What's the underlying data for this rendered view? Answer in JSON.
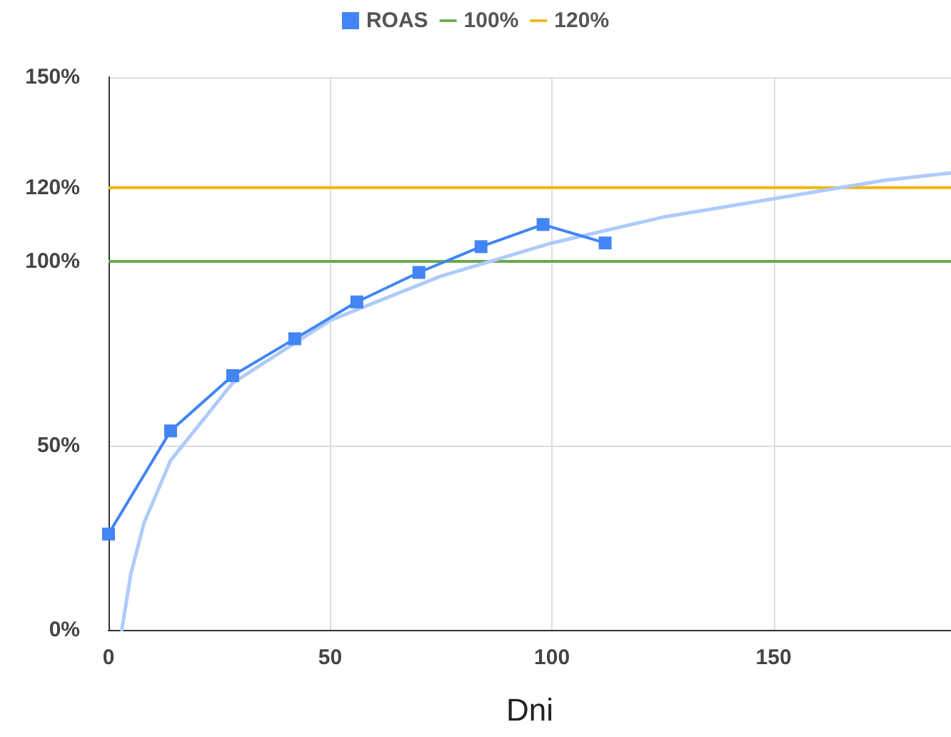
{
  "chart_data": {
    "type": "line",
    "xlabel": "Dni",
    "xlim": [
      0,
      190
    ],
    "xticks": [
      0,
      50,
      100,
      150
    ],
    "ylim": [
      0,
      150
    ],
    "yticks": [
      {
        "value": 0,
        "label": "0%"
      },
      {
        "value": 50,
        "label": "50%"
      },
      {
        "value": 100,
        "label": "100%"
      },
      {
        "value": 120,
        "label": "120%"
      },
      {
        "value": 150,
        "label": "150%"
      }
    ],
    "grid": true,
    "legend": "top",
    "marker": "square",
    "series": [
      {
        "name": "ROAS",
        "color": "#4285f4",
        "x": [
          0,
          14,
          28,
          42,
          56,
          70,
          84,
          98,
          112
        ],
        "values": [
          26,
          54,
          69,
          79,
          89,
          97,
          104,
          110,
          105
        ]
      },
      {
        "type": "line",
        "color": "#aecbfa",
        "marker": "none",
        "x": [
          3,
          5,
          8,
          14,
          28,
          50,
          75,
          100,
          125,
          150,
          175,
          190
        ],
        "values": [
          0,
          15,
          29,
          46,
          67,
          84,
          96,
          105,
          112,
          117,
          122,
          124
        ]
      }
    ],
    "ref_lines": [
      {
        "axis": "y",
        "value": 100,
        "label": "100%",
        "color": "#6aa84f"
      },
      {
        "axis": "y",
        "value": 120,
        "label": "120%",
        "color": "#f4b400"
      }
    ]
  }
}
